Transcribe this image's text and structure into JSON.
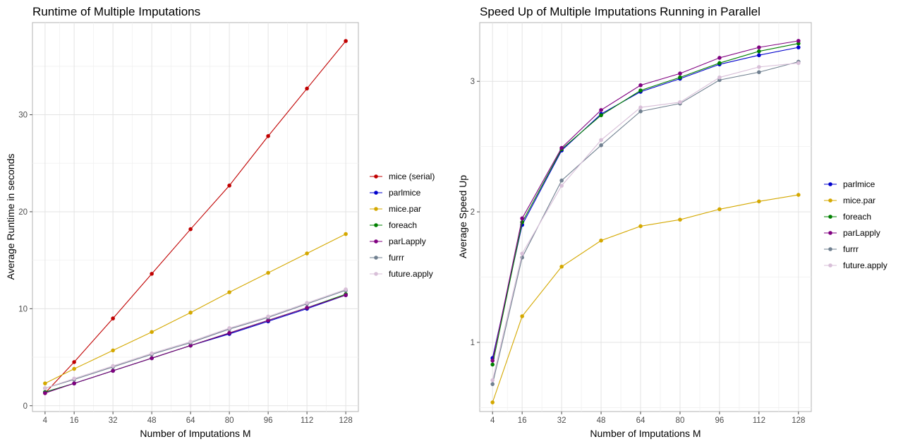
{
  "colors": {
    "mice (serial)": "#c00000",
    "parlmice": "#0000cc",
    "mice.par": "#d4a800",
    "foreach": "#008000",
    "parLapply": "#800080",
    "furrr": "#708090",
    "future.apply": "#d8bfd8"
  },
  "chart_data": [
    {
      "type": "line",
      "title": "Runtime of Multiple Imputations",
      "xlabel": "Number of Imputations M",
      "ylabel": "Average Runtime in seconds",
      "x": [
        4,
        16,
        32,
        48,
        64,
        80,
        96,
        112,
        128
      ],
      "xticks": [
        "4",
        "16",
        "32",
        "48",
        "64",
        "80",
        "96",
        "112",
        "128"
      ],
      "yticks": [
        0,
        10,
        20,
        30
      ],
      "xlim": [
        -1.2,
        133.2
      ],
      "ylim": [
        -0.6,
        39.5
      ],
      "grid": true,
      "legend_position": "right",
      "series": [
        {
          "name": "mice (serial)",
          "values": [
            1.3,
            4.5,
            9.0,
            13.6,
            18.2,
            22.7,
            27.8,
            32.7,
            37.6
          ]
        },
        {
          "name": "parlmice",
          "values": [
            1.4,
            2.3,
            3.6,
            4.9,
            6.2,
            7.4,
            8.7,
            10.0,
            11.4
          ]
        },
        {
          "name": "mice.par",
          "values": [
            2.3,
            3.8,
            5.7,
            7.6,
            9.6,
            11.7,
            13.7,
            15.7,
            17.7
          ]
        },
        {
          "name": "foreach",
          "values": [
            1.4,
            2.3,
            3.6,
            4.9,
            6.2,
            7.5,
            8.8,
            10.1,
            11.5
          ]
        },
        {
          "name": "parLapply",
          "values": [
            1.3,
            2.3,
            3.6,
            4.9,
            6.2,
            7.5,
            8.8,
            10.1,
            11.4
          ]
        },
        {
          "name": "furrr",
          "values": [
            1.8,
            2.7,
            4.0,
            5.3,
            6.5,
            7.9,
            9.1,
            10.5,
            11.9
          ]
        },
        {
          "name": "future.apply",
          "values": [
            1.8,
            2.8,
            4.1,
            5.4,
            6.6,
            8.0,
            9.2,
            10.6,
            12.0
          ]
        }
      ]
    },
    {
      "type": "line",
      "title": "Speed Up of Multiple Imputations Running in Parallel",
      "xlabel": "Number of Imputations M",
      "ylabel": "Average Speed Up",
      "x": [
        4,
        16,
        32,
        48,
        64,
        80,
        96,
        112,
        128
      ],
      "xticks": [
        "4",
        "16",
        "32",
        "48",
        "64",
        "80",
        "96",
        "112",
        "128"
      ],
      "yticks": [
        1,
        2,
        3
      ],
      "xlim": [
        -1.2,
        133.2
      ],
      "ylim": [
        0.47,
        3.45
      ],
      "grid": true,
      "legend_position": "right",
      "series": [
        {
          "name": "parlmice",
          "values": [
            0.88,
            1.9,
            2.47,
            2.75,
            2.92,
            3.02,
            3.13,
            3.2,
            3.26
          ]
        },
        {
          "name": "mice.par",
          "values": [
            0.54,
            1.2,
            1.58,
            1.78,
            1.89,
            1.94,
            2.02,
            2.08,
            2.13
          ]
        },
        {
          "name": "foreach",
          "values": [
            0.83,
            1.92,
            2.48,
            2.74,
            2.93,
            3.03,
            3.14,
            3.23,
            3.29
          ]
        },
        {
          "name": "parLapply",
          "values": [
            0.86,
            1.95,
            2.49,
            2.78,
            2.97,
            3.06,
            3.18,
            3.26,
            3.31
          ]
        },
        {
          "name": "furrr",
          "values": [
            0.68,
            1.65,
            2.24,
            2.51,
            2.77,
            2.83,
            3.01,
            3.07,
            3.15
          ]
        },
        {
          "name": "future.apply",
          "values": [
            0.71,
            1.68,
            2.2,
            2.55,
            2.8,
            2.84,
            3.03,
            3.11,
            3.14
          ]
        }
      ]
    }
  ]
}
